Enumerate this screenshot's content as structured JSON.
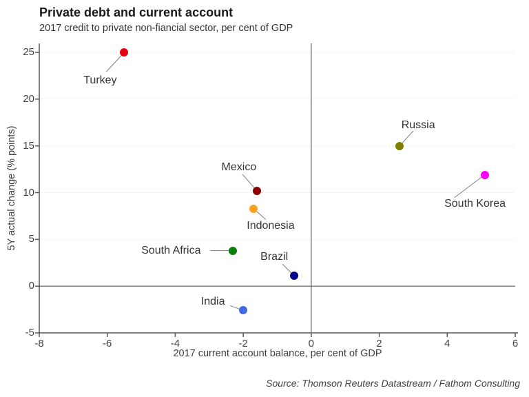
{
  "header": {
    "title": "Private debt and current account",
    "subtitle": "2017 credit to private non-fiancial sector, per cent of GDP"
  },
  "footer": {
    "source": "Source: Thomson Reuters Datastream / Fathom Consulting"
  },
  "chart_data": {
    "type": "scatter",
    "title": "Private debt and current account",
    "subtitle": "2017 credit to private non-fiancial sector, per cent of GDP",
    "xlabel": "2017 current account balance, per cent of GDP",
    "ylabel": "5Y actual change (% points)",
    "xlim": [
      -8,
      6
    ],
    "ylim": [
      -5,
      25
    ],
    "x_ticks": [
      -8,
      -6,
      -4,
      -2,
      0,
      2,
      4,
      6
    ],
    "y_ticks": [
      -5,
      0,
      5,
      10,
      15,
      20,
      25
    ],
    "grid": "horizontal dotted at 5,10,15,20,25; solid zero lines at x=0 and y=0",
    "legend_position": "none",
    "colors": {
      "axis": "#595959",
      "zero_line": "#404040",
      "gridline": "#d9d9d9",
      "leader_line": "#7f7f7f"
    },
    "points": [
      {
        "label": "Turkey",
        "x": -5.5,
        "y": 25.0,
        "color": "#e8000d",
        "label_offset": [
          -35,
          41
        ],
        "line_to": [
          -26,
          28
        ]
      },
      {
        "label": "Russia",
        "x": 2.6,
        "y": 15.0,
        "color": "#7f7f00",
        "label_offset": [
          27,
          -30
        ],
        "line_to": [
          20,
          -22
        ]
      },
      {
        "label": "South Korea",
        "x": 5.1,
        "y": 11.9,
        "color": "#ff00ff",
        "label_offset": [
          -14,
          42
        ],
        "line_to": [
          -44,
          33
        ]
      },
      {
        "label": "Mexico",
        "x": -1.6,
        "y": 10.2,
        "color": "#8b0000",
        "label_offset": [
          -26,
          -34
        ],
        "line_to": [
          -21,
          -24
        ]
      },
      {
        "label": "Indonesia",
        "x": -1.7,
        "y": 8.3,
        "color": "#fda01e",
        "label_offset": [
          25,
          25
        ],
        "line_to": [
          18,
          16
        ]
      },
      {
        "label": "South Africa",
        "x": -2.3,
        "y": 3.8,
        "color": "#0d7d0d",
        "label_offset": [
          -90,
          0
        ],
        "line_to": [
          -33,
          0
        ]
      },
      {
        "label": "Brazil",
        "x": -0.5,
        "y": 1.1,
        "color": "#00008b",
        "label_offset": [
          -29,
          -27
        ],
        "line_to": [
          -17,
          -17
        ]
      },
      {
        "label": "India",
        "x": -2.0,
        "y": -2.6,
        "color": "#4169e1",
        "label_offset": [
          -44,
          -12
        ],
        "line_to": [
          -19,
          -7
        ]
      }
    ]
  }
}
